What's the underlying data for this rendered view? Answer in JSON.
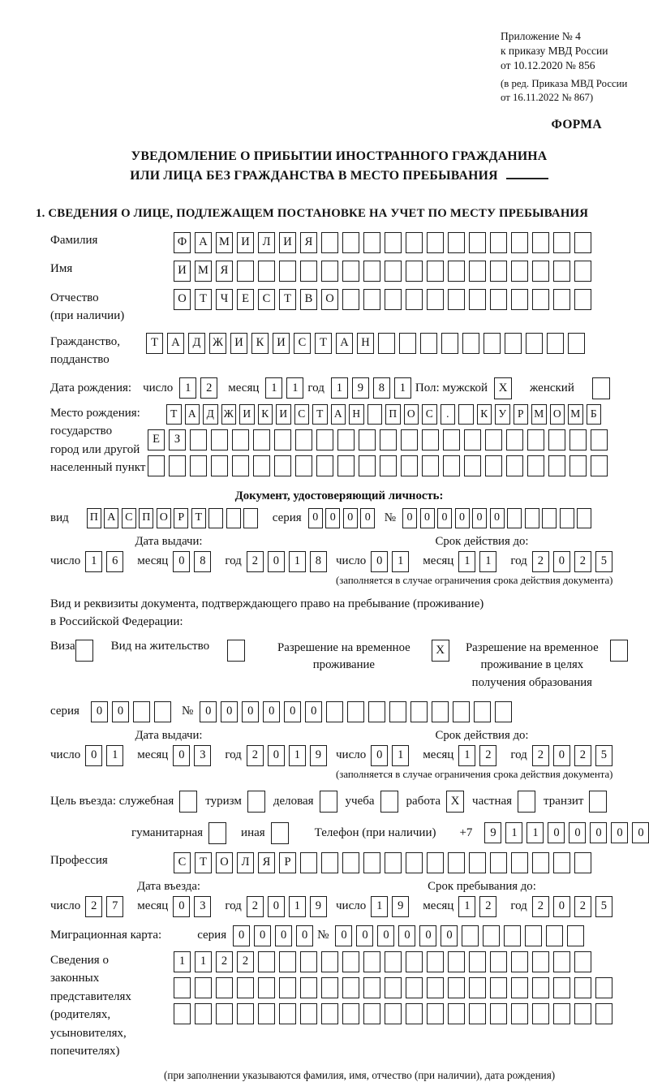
{
  "header": {
    "annex_lines": [
      "Приложение № 4",
      "к приказу МВД России",
      "от 10.12.2020 № 856"
    ],
    "revision_lines": [
      "(в ред. Приказа МВД России",
      "от 16.11.2022 № 867)"
    ],
    "forma": "ФОРМА"
  },
  "title": {
    "line1": "УВЕДОМЛЕНИЕ О ПРИБЫТИИ ИНОСТРАННОГО ГРАЖДАНИНА",
    "line2": "ИЛИ ЛИЦА БЕЗ ГРАЖДАНСТВА В МЕСТО ПРЕБЫВАНИЯ"
  },
  "section1_heading": "1. СВЕДЕНИЯ О ЛИЦЕ, ПОДЛЕЖАЩЕМ ПОСТАНОВКЕ НА УЧЕТ ПО МЕСТУ ПРЕБЫВАНИЯ",
  "labels": {
    "surname": "Фамилия",
    "name": "Имя",
    "patronymic": "Отчество",
    "patronymic2": "(при наличии)",
    "citizenship1": "Гражданство,",
    "citizenship2": "подданство",
    "birth_date": "Дата рождения:",
    "day": "число",
    "month": "месяц",
    "year": "год",
    "sex_male": "Пол: мужской",
    "sex_female": "женский",
    "birthplace1": "Место рождения:",
    "birthplace2": "государство",
    "birthplace3": "город или другой",
    "birthplace4": "населенный пункт",
    "identity_doc": "Документ, удостоверяющий личность:",
    "doc_type": "вид",
    "series": "серия",
    "number": "№",
    "issue_date": "Дата выдачи:",
    "valid_until": "Срок действия до:",
    "limit_note": "(заполняется в случае ограничения срока действия документа)",
    "right_doc1": "Вид и реквизиты документа, подтверждающего право на пребывание (проживание)",
    "right_doc2": "в Российской Федерации:",
    "visa": "Виза",
    "residence_permit": "Вид на жительство",
    "temp_residence": "Разрешение на временное проживание",
    "temp_residence_edu": "Разрешение на временное проживание в целях получения образования",
    "purpose": "Цель въезда: служебная",
    "tourism": "туризм",
    "business": "деловая",
    "study": "учеба",
    "work": "работа",
    "private": "частная",
    "transit": "транзит",
    "humanitarian": "гуманитарная",
    "other": "иная",
    "phone": "Телефон (при наличии)",
    "phone_prefix": "+7",
    "profession": "Профессия",
    "entry_date": "Дата въезда:",
    "stay_until": "Срок пребывания до:",
    "migration_card": "Миграционная карта:",
    "guardians_lines": [
      "Сведения о",
      "законных",
      "представителях",
      "(родителях,",
      "усыновителях,",
      "попечителях)"
    ],
    "guardians_note": "(при заполнении указываются фамилия, имя, отчество (при наличии), дата рождения)"
  },
  "boxrows": {
    "surname": {
      "n": 20,
      "v": "ФАМИЛИЯ"
    },
    "name": {
      "n": 20,
      "v": "ИМЯ"
    },
    "patronymic": {
      "n": 20,
      "v": "ОТЧЕСТВО"
    },
    "citizenship": {
      "n": 21,
      "v": "ТАДЖИКИСТАН"
    },
    "birth_day": {
      "n": 2,
      "v": "12"
    },
    "birth_month": {
      "n": 2,
      "v": "11"
    },
    "birth_year": {
      "n": 4,
      "v": "1981"
    },
    "birthplace1": {
      "n": 24,
      "v": "ТАДЖИКИСТАН ПОС. КУРМОМБ"
    },
    "birthplace2": {
      "n": 22,
      "v": "ЕЗ"
    },
    "birthplace3": {
      "n": 22,
      "v": ""
    },
    "doc_type": {
      "n": 10,
      "v": "ПАСПОРТ"
    },
    "doc_series": {
      "n": 4,
      "v": "0000"
    },
    "doc_number": {
      "n": 11,
      "v": "000000"
    },
    "p_issue_day": {
      "n": 2,
      "v": "16"
    },
    "p_issue_month": {
      "n": 2,
      "v": "08"
    },
    "p_issue_year": {
      "n": 4,
      "v": "2018"
    },
    "p_exp_day": {
      "n": 2,
      "v": "01"
    },
    "p_exp_month": {
      "n": 2,
      "v": "11"
    },
    "p_exp_year": {
      "n": 4,
      "v": "2025"
    },
    "res_series": {
      "n": 4,
      "v": "00"
    },
    "res_number": {
      "n": 15,
      "v": "000000"
    },
    "r_issue_day": {
      "n": 2,
      "v": "01"
    },
    "r_issue_month": {
      "n": 2,
      "v": "03"
    },
    "r_issue_year": {
      "n": 4,
      "v": "2019"
    },
    "r_exp_day": {
      "n": 2,
      "v": "01"
    },
    "r_exp_month": {
      "n": 2,
      "v": "12"
    },
    "r_exp_year": {
      "n": 4,
      "v": "2025"
    },
    "phone": {
      "n": 10,
      "v": "911000000"
    },
    "profession": {
      "n": 20,
      "v": "СТОЛЯР"
    },
    "entry_day": {
      "n": 2,
      "v": "27"
    },
    "entry_month": {
      "n": 2,
      "v": "03"
    },
    "entry_year": {
      "n": 4,
      "v": "2019"
    },
    "stay_day": {
      "n": 2,
      "v": "19"
    },
    "stay_month": {
      "n": 2,
      "v": "12"
    },
    "stay_year": {
      "n": 4,
      "v": "2025"
    },
    "mig_series": {
      "n": 4,
      "v": "0000"
    },
    "mig_number": {
      "n": 12,
      "v": "000000"
    },
    "guardians1": {
      "n": 20,
      "v": "1122"
    },
    "guardians2": {
      "n": 21,
      "v": ""
    },
    "guardians3": {
      "n": 21,
      "v": ""
    }
  },
  "checkboxes": {
    "male": "X",
    "female": "",
    "visa": "",
    "residence_permit": "",
    "temp_residence": "X",
    "temp_residence_edu": "",
    "official": "",
    "tourism": "",
    "business": "",
    "study": "",
    "work": "X",
    "private": "",
    "transit": "",
    "humanitarian": "",
    "other": ""
  }
}
